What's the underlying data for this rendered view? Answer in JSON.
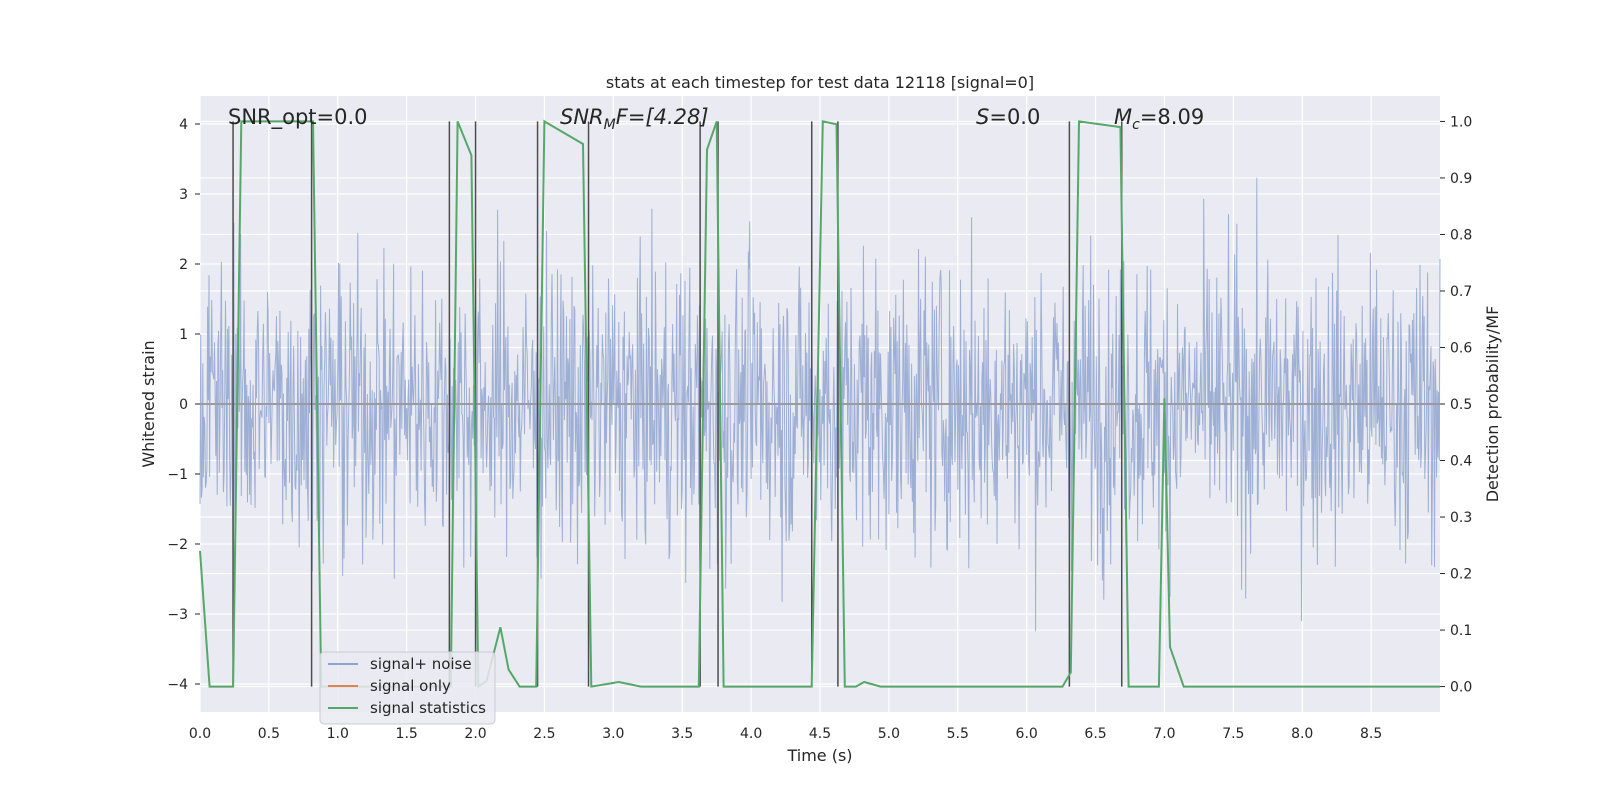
{
  "chart_data": {
    "type": "line",
    "title": "stats at each timestep for test data 12118 [signal=0]",
    "xlabel": "Time (s)",
    "ylabel_left": "Whitened strain",
    "ylabel_right": "Detection probability/MF",
    "xlim": [
      0.0,
      9.0
    ],
    "ylim_left": [
      -4.4,
      4.4
    ],
    "ylim_right": [
      -0.045,
      1.045
    ],
    "x_ticks": [
      0.0,
      0.5,
      1.0,
      1.5,
      2.0,
      2.5,
      3.0,
      3.5,
      4.0,
      4.5,
      5.0,
      5.5,
      6.0,
      6.5,
      7.0,
      7.5,
      8.0,
      8.5
    ],
    "x_tick_labels": [
      "0.0",
      "0.5",
      "1.0",
      "1.5",
      "2.0",
      "2.5",
      "3.0",
      "3.5",
      "4.0",
      "4.5",
      "5.0",
      "5.5",
      "6.0",
      "6.5",
      "7.0",
      "7.5",
      "8.0",
      "8.5"
    ],
    "y_ticks_left": [
      4,
      3,
      2,
      1,
      0,
      -1,
      -2,
      -3,
      -4
    ],
    "y_tick_labels_left": [
      "4",
      "3",
      "2",
      "1",
      "0",
      "−1",
      "−2",
      "−3",
      "−4"
    ],
    "y_ticks_right": [
      1.0,
      0.9,
      0.8,
      0.7,
      0.6,
      0.5,
      0.4,
      0.3,
      0.2,
      0.1,
      0.0
    ],
    "y_tick_labels_right": [
      "1.0",
      "0.9",
      "0.8",
      "0.7",
      "0.6",
      "0.5",
      "0.4",
      "0.3",
      "0.2",
      "0.1",
      "0.0"
    ],
    "annotations": {
      "snr_opt": "SNR_opt=0.0",
      "snr_mf_main": "SNR",
      "snr_mf_sub": "M",
      "snr_mf_tail": "F=[4.28]",
      "s_main": "S",
      "s_tail": "=0.0",
      "mc_main": "M",
      "mc_sub": "c",
      "mc_tail": "=8.09"
    },
    "legend": [
      {
        "label": "signal+ noise",
        "color": "#8fa5cf"
      },
      {
        "label": "signal only",
        "color": "#dd8452"
      },
      {
        "label": "signal statistics",
        "color": "#55a868"
      }
    ],
    "series": [
      {
        "name": "signal+ noise",
        "axis": "left",
        "color": "#8fa5cf",
        "x_range": [
          0.0,
          9.0
        ],
        "samples": 1800,
        "amplitude_range": [
          -4.0,
          4.0
        ]
      },
      {
        "name": "signal only",
        "axis": "left",
        "color": "#dd8452",
        "x": [
          0.0,
          9.0
        ],
        "y": [
          0.0,
          0.0
        ]
      },
      {
        "name": "signal statistics",
        "axis": "right",
        "color": "#55a868",
        "x": [
          0.0,
          0.07,
          0.2,
          0.24,
          0.3,
          0.82,
          0.88,
          1.82,
          1.87,
          1.97,
          2.02,
          2.08,
          2.18,
          2.24,
          2.32,
          2.44,
          2.5,
          2.78,
          2.84,
          3.04,
          3.2,
          3.62,
          3.68,
          3.75,
          3.8,
          4.44,
          4.52,
          4.62,
          4.68,
          4.76,
          4.82,
          4.94,
          6.26,
          6.32,
          6.38,
          6.68,
          6.74,
          6.96,
          7.0,
          7.04,
          7.14,
          9.0
        ],
        "y": [
          0.24,
          0.0,
          0.0,
          0.0,
          1.0,
          1.0,
          0.0,
          0.0,
          1.0,
          0.94,
          0.0,
          0.01,
          0.105,
          0.03,
          0.0,
          0.0,
          1.0,
          0.96,
          0.0,
          0.008,
          0.0,
          0.0,
          0.95,
          1.0,
          0.0,
          0.0,
          1.0,
          0.995,
          0.0,
          0.0,
          0.008,
          0.0,
          0.0,
          0.025,
          1.0,
          0.99,
          0.0,
          0.0,
          0.51,
          0.07,
          0.0,
          0.0
        ]
      }
    ],
    "vertical_markers": [
      0.24,
      0.81,
      1.81,
      2.0,
      2.45,
      2.82,
      3.63,
      3.76,
      4.44,
      4.63,
      6.31,
      6.69
    ]
  }
}
